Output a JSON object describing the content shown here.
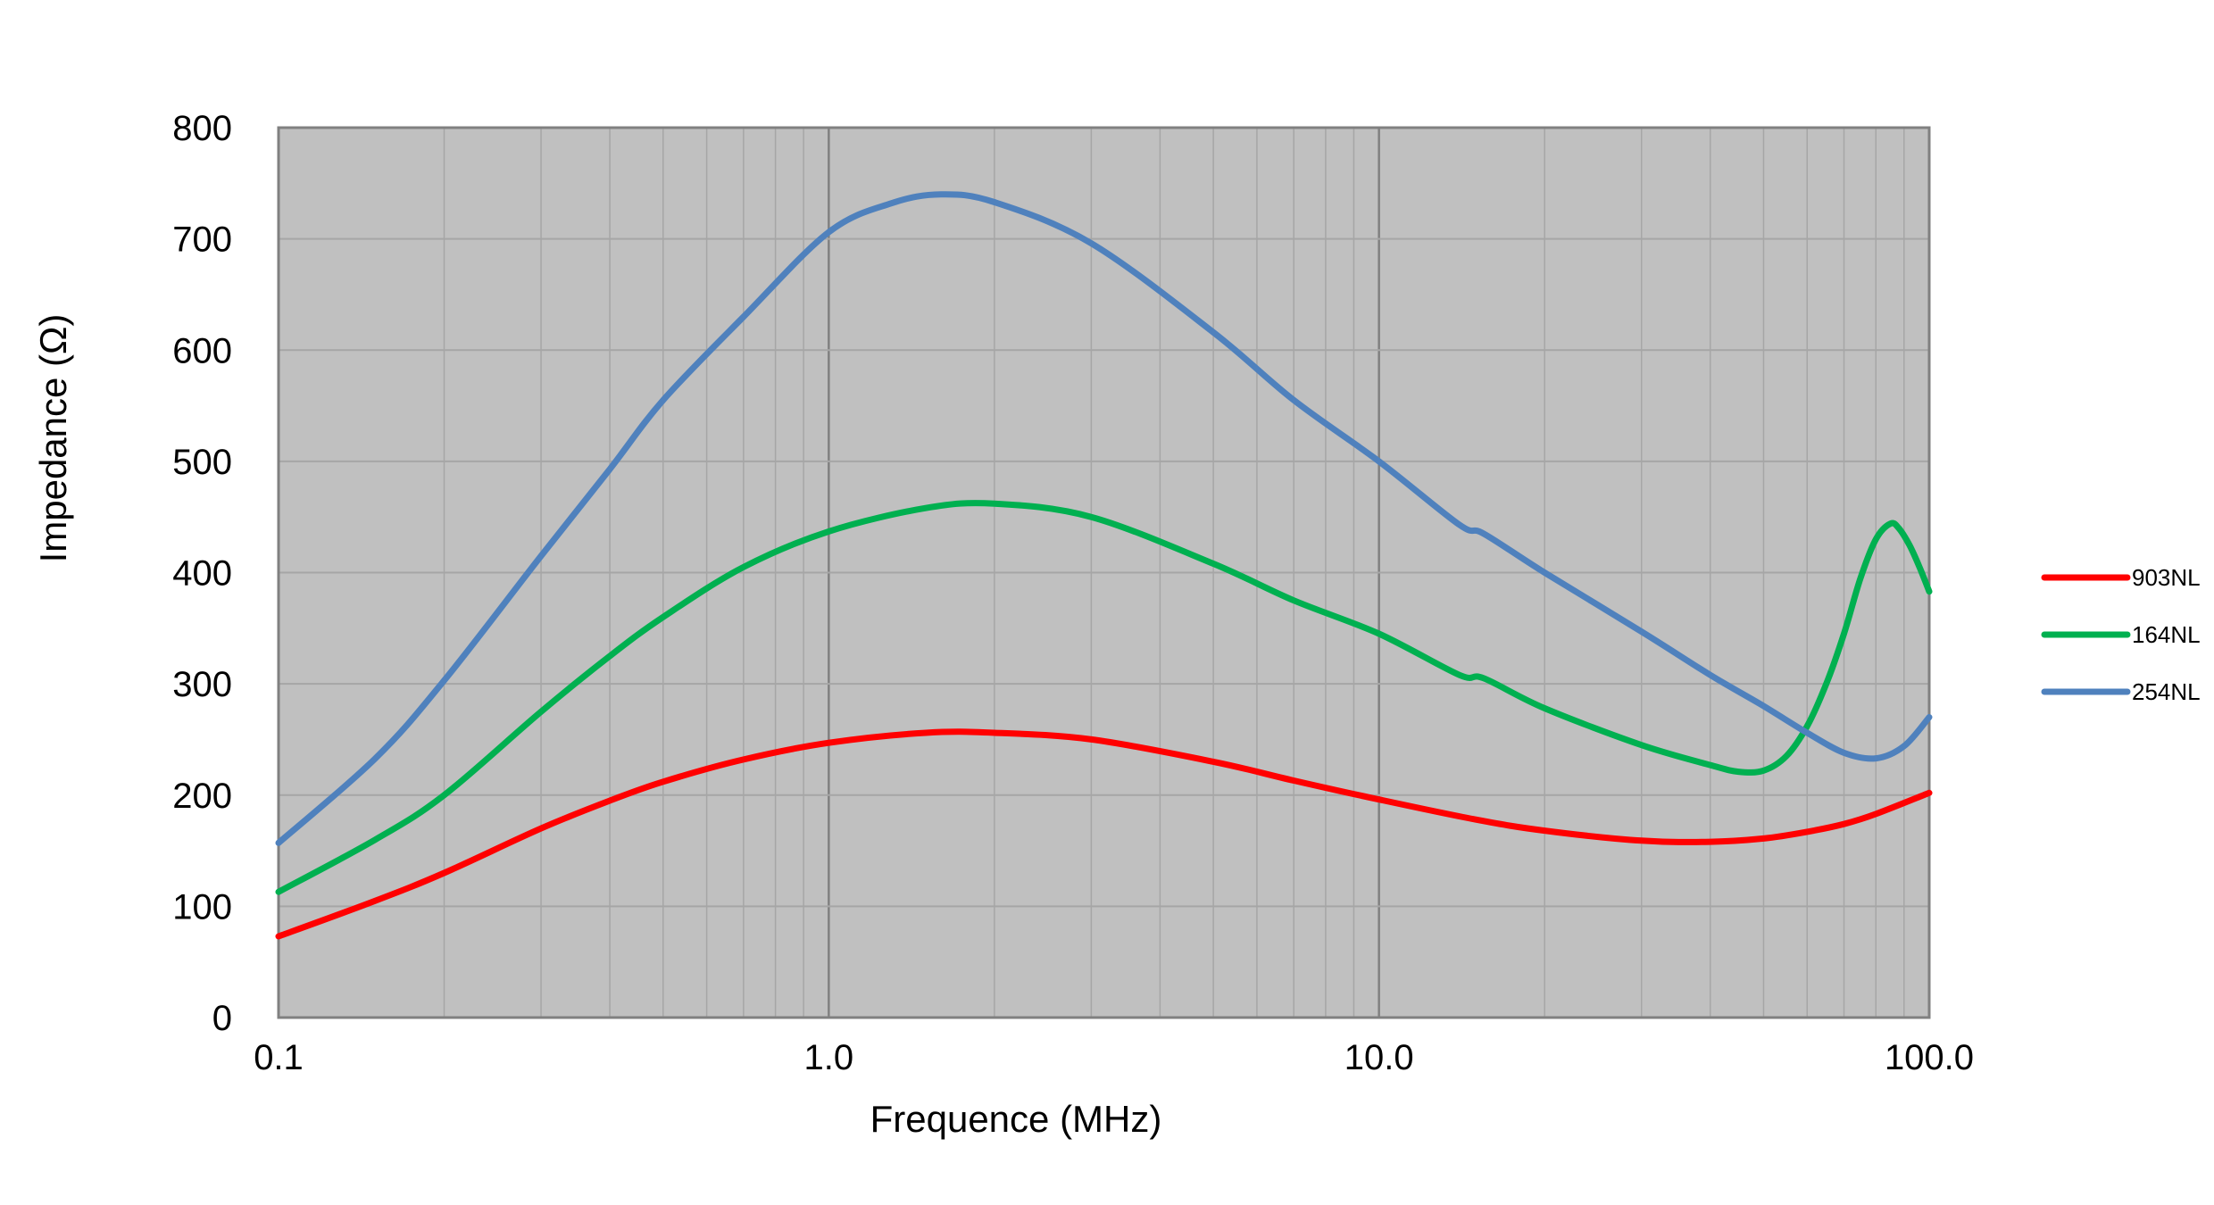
{
  "chart_data": {
    "type": "line",
    "xscale": "log",
    "xlim": [
      0.1,
      100.0
    ],
    "ylim": [
      0,
      800
    ],
    "xlabel": "Frequence (MHz)",
    "ylabel": "Impedance (Ω)",
    "x_tick_labels": [
      "0.1",
      "1.0",
      "10.0",
      "100.0"
    ],
    "x_tick_values": [
      0.1,
      1.0,
      10.0,
      100.0
    ],
    "y_tick_labels": [
      "0",
      "100",
      "200",
      "300",
      "400",
      "500",
      "600",
      "700",
      "800"
    ],
    "y_tick_values": [
      0,
      100,
      200,
      300,
      400,
      500,
      600,
      700,
      800
    ],
    "grid": true,
    "plot_background": "#c0c0c0",
    "legend_position": "right",
    "series": [
      {
        "name": "903NL",
        "color": "#ff0000",
        "x": [
          0.1,
          0.15,
          0.2,
          0.3,
          0.4,
          0.5,
          0.7,
          1.0,
          1.5,
          2.0,
          3.0,
          5.0,
          7.0,
          10.0,
          15.0,
          20.0,
          30.0,
          40.0,
          50.0,
          60.0,
          70.0,
          80.0,
          100.0
        ],
        "y": [
          73,
          105,
          130,
          170,
          195,
          212,
          232,
          247,
          256,
          256,
          250,
          230,
          213,
          196,
          178,
          168,
          159,
          158,
          161,
          167,
          174,
          183,
          202
        ]
      },
      {
        "name": "164NL",
        "color": "#00b050",
        "x": [
          0.1,
          0.15,
          0.2,
          0.3,
          0.4,
          0.5,
          0.7,
          1.0,
          1.5,
          2.0,
          3.0,
          5.0,
          7.0,
          10.0,
          14.0,
          15.5,
          20.0,
          30.0,
          40.0,
          45.0,
          50.0,
          55.0,
          60.0,
          65.0,
          70.0,
          75.0,
          80.0,
          85.0,
          88.0,
          92.0,
          96.0,
          100.0
        ],
        "y": [
          113,
          160,
          200,
          275,
          325,
          360,
          405,
          437,
          458,
          462,
          450,
          408,
          375,
          345,
          308,
          305,
          278,
          245,
          227,
          221,
          222,
          235,
          262,
          300,
          345,
          395,
          430,
          444,
          440,
          425,
          405,
          383
        ]
      },
      {
        "name": "254NL",
        "color": "#4f81bd",
        "x": [
          0.1,
          0.15,
          0.2,
          0.3,
          0.4,
          0.5,
          0.7,
          1.0,
          1.3,
          1.6,
          2.0,
          3.0,
          5.0,
          7.0,
          10.0,
          14.0,
          15.5,
          20.0,
          30.0,
          40.0,
          50.0,
          60.0,
          70.0,
          80.0,
          90.0,
          100.0
        ],
        "y": [
          157,
          233,
          303,
          415,
          493,
          555,
          630,
          706,
          732,
          740,
          733,
          696,
          616,
          555,
          500,
          443,
          435,
          400,
          347,
          308,
          280,
          256,
          238,
          233,
          244,
          270
        ]
      }
    ]
  }
}
